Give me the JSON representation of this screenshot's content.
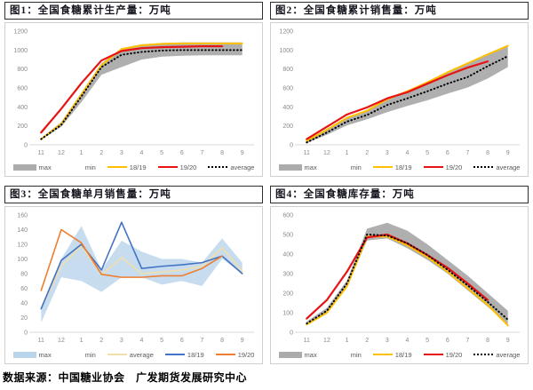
{
  "page": {
    "source_note": "数据来源：中国糖业协会　广发期货发展研究中心"
  },
  "colors": {
    "band_gray": "#ABABAB",
    "band_blue": "#B9D5EB",
    "line_yellow": "#FFC000",
    "line_red": "#E81212",
    "line_blue": "#4472C4",
    "line_orange": "#ED7D31",
    "line_cream": "#F0DFA8",
    "dotted_black": "#000000",
    "title_border": "#2E2E2E",
    "panel_border": "#CFCFCF",
    "axis_gray": "#D9D9D9"
  },
  "chart_data": [
    {
      "type": "line",
      "title": "图1：全国食糖累计生产量：万吨",
      "xlabel": "",
      "ylabel": "",
      "categories": [
        "11",
        "12",
        "1",
        "2",
        "3",
        "4",
        "5",
        "6",
        "7",
        "8",
        "9"
      ],
      "ylim": [
        0,
        1200
      ],
      "yticks": [
        0,
        200,
        400,
        600,
        800,
        1000,
        1200
      ],
      "grid": false,
      "legend_position": "bottom",
      "band": {
        "name": "max-min range",
        "color": "#ABABAB",
        "opacity": 0.95,
        "max": [
          70,
          240,
          550,
          860,
          1020,
          1060,
          1075,
          1080,
          1080,
          1080,
          1080
        ],
        "min": [
          50,
          190,
          450,
          740,
          820,
          900,
          930,
          940,
          945,
          945,
          945
        ]
      },
      "series": [
        {
          "name": "18/19",
          "color": "#FFC000",
          "width": 2,
          "values": [
            60,
            220,
            530,
            840,
            1010,
            1050,
            1065,
            1070,
            1070,
            1070,
            1070
          ]
        },
        {
          "name": "19/20",
          "color": "#E81212",
          "width": 2.2,
          "values": [
            130,
            380,
            650,
            890,
            990,
            1020,
            1030,
            1035,
            1040,
            1040,
            null
          ]
        },
        {
          "name": "average",
          "color": "#000000",
          "width": 2,
          "dash": "dots",
          "values": [
            60,
            210,
            510,
            820,
            950,
            980,
            995,
            1000,
            1000,
            1000,
            1000
          ]
        }
      ],
      "legend": [
        {
          "label": "max",
          "swatch": "band",
          "color": "#ABABAB"
        },
        {
          "label": "min",
          "swatch": "line",
          "color": "#FFFFFF"
        },
        {
          "label": "18/19",
          "swatch": "line",
          "color": "#FFC000"
        },
        {
          "label": "19/20",
          "swatch": "line",
          "color": "#E81212"
        },
        {
          "label": "average",
          "swatch": "dots",
          "color": "#000000"
        }
      ]
    },
    {
      "type": "line",
      "title": "图2：全国食糖累计销售量：万吨",
      "xlabel": "",
      "ylabel": "",
      "categories": [
        "11",
        "12",
        "1",
        "2",
        "3",
        "4",
        "5",
        "6",
        "7",
        "8",
        "9"
      ],
      "ylim": [
        0,
        1200
      ],
      "yticks": [
        0,
        200,
        400,
        600,
        800,
        1000,
        1200
      ],
      "grid": false,
      "legend_position": "bottom",
      "band": {
        "name": "max-min range",
        "color": "#ABABAB",
        "opacity": 0.95,
        "max": [
          45,
          165,
          290,
          370,
          485,
          570,
          665,
          770,
          865,
          960,
          1050
        ],
        "min": [
          20,
          105,
          205,
          270,
          345,
          410,
          470,
          540,
          605,
          700,
          820
        ]
      },
      "series": [
        {
          "name": "18/19",
          "color": "#FFC000",
          "width": 2,
          "values": [
            40,
            160,
            285,
            360,
            480,
            565,
            660,
            765,
            860,
            955,
            1045
          ]
        },
        {
          "name": "19/20",
          "color": "#E81212",
          "width": 2.2,
          "values": [
            60,
            190,
            320,
            395,
            490,
            555,
            645,
            735,
            815,
            880,
            null
          ]
        },
        {
          "name": "average",
          "color": "#000000",
          "width": 2,
          "dash": "dots",
          "values": [
            25,
            130,
            245,
            315,
            420,
            490,
            565,
            645,
            715,
            830,
            935
          ]
        }
      ],
      "legend": [
        {
          "label": "max",
          "swatch": "band",
          "color": "#ABABAB"
        },
        {
          "label": "min",
          "swatch": "line",
          "color": "#FFFFFF"
        },
        {
          "label": "18/19",
          "swatch": "line",
          "color": "#FFC000"
        },
        {
          "label": "19/20",
          "swatch": "line",
          "color": "#E81212"
        },
        {
          "label": "average",
          "swatch": "dots",
          "color": "#000000"
        }
      ]
    },
    {
      "type": "line",
      "title": "图3：全国食糖单月销售量：万吨",
      "xlabel": "",
      "ylabel": "",
      "categories": [
        "11",
        "12",
        "1",
        "2",
        "3",
        "4",
        "5",
        "6",
        "7",
        "8",
        "9"
      ],
      "ylim": [
        0,
        160
      ],
      "yticks": [
        0,
        20,
        40,
        60,
        80,
        100,
        120,
        140,
        160
      ],
      "grid": false,
      "legend_position": "bottom",
      "band": {
        "name": "max-min range",
        "color": "#B9D5EB",
        "opacity": 0.8,
        "max": [
          35,
          100,
          145,
          85,
          125,
          110,
          100,
          100,
          95,
          128,
          95
        ],
        "min": [
          13,
          75,
          70,
          55,
          75,
          75,
          65,
          70,
          63,
          100,
          80
        ]
      },
      "series": [
        {
          "name": "average",
          "color": "#F0DFA8",
          "width": 1.6,
          "values": [
            33,
            90,
            118,
            78,
            102,
            80,
            82,
            85,
            90,
            115,
            83
          ]
        },
        {
          "name": "18/19",
          "color": "#4472C4",
          "width": 1.6,
          "values": [
            32,
            98,
            120,
            85,
            150,
            87,
            90,
            92,
            95,
            104,
            80
          ]
        },
        {
          "name": "19/20",
          "color": "#ED7D31",
          "width": 1.6,
          "values": [
            57,
            140,
            122,
            79,
            75,
            75,
            77,
            77,
            87,
            104,
            null
          ]
        }
      ],
      "legend": [
        {
          "label": "max",
          "swatch": "band",
          "color": "#B9D5EB"
        },
        {
          "label": "min",
          "swatch": "line",
          "color": "#FFFFFF"
        },
        {
          "label": "average",
          "swatch": "line",
          "color": "#F0DFA8"
        },
        {
          "label": "18/19",
          "swatch": "line",
          "color": "#4472C4"
        },
        {
          "label": "19/20",
          "swatch": "line",
          "color": "#ED7D31"
        }
      ]
    },
    {
      "type": "line",
      "title": "图4：全国食糖库存量：万吨",
      "xlabel": "",
      "ylabel": "",
      "categories": [
        "11",
        "12",
        "1",
        "2",
        "3",
        "4",
        "5",
        "6",
        "7",
        "8",
        "9"
      ],
      "ylim": [
        0,
        600
      ],
      "yticks": [
        0,
        100,
        200,
        300,
        400,
        500,
        600
      ],
      "grid": false,
      "legend_position": "bottom",
      "band": {
        "name": "max-min range",
        "color": "#ABABAB",
        "opacity": 0.95,
        "max": [
          55,
          125,
          265,
          530,
          560,
          520,
          450,
          370,
          290,
          200,
          110
        ],
        "min": [
          35,
          95,
          230,
          470,
          480,
          430,
          370,
          300,
          215,
          130,
          40
        ]
      },
      "series": [
        {
          "name": "18/19",
          "color": "#FFC000",
          "width": 2,
          "values": [
            40,
            100,
            235,
            490,
            490,
            445,
            385,
            310,
            225,
            140,
            35
          ]
        },
        {
          "name": "19/20",
          "color": "#E81212",
          "width": 2.2,
          "values": [
            70,
            165,
            310,
            485,
            500,
            455,
            395,
            330,
            250,
            165,
            null
          ]
        },
        {
          "name": "average",
          "color": "#000000",
          "width": 2,
          "dash": "dots",
          "values": [
            45,
            110,
            250,
            500,
            495,
            455,
            395,
            320,
            240,
            155,
            65
          ]
        }
      ],
      "legend": [
        {
          "label": "max",
          "swatch": "band",
          "color": "#ABABAB"
        },
        {
          "label": "min",
          "swatch": "line",
          "color": "#FFFFFF"
        },
        {
          "label": "18/19",
          "swatch": "line",
          "color": "#FFC000"
        },
        {
          "label": "19/20",
          "swatch": "line",
          "color": "#E81212"
        },
        {
          "label": "average",
          "swatch": "dots",
          "color": "#000000"
        }
      ]
    }
  ]
}
